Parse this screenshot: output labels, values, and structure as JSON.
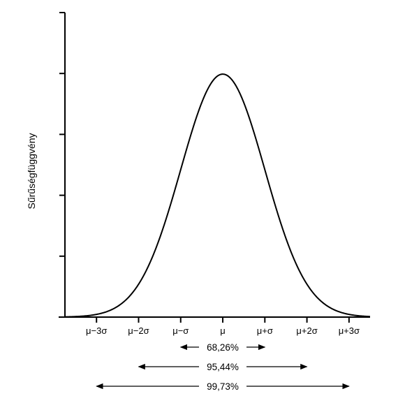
{
  "chart_data": {
    "type": "line",
    "title": "",
    "xlabel": "",
    "ylabel": "Sűrűségfüggvény",
    "xlim": [
      -3.75,
      3.5
    ],
    "ylim": [
      0,
      0.5
    ],
    "grid": false,
    "y_tick_count": 6,
    "distribution": {
      "type": "normal",
      "mean": 0,
      "sd": 1
    },
    "x_ticks": [
      {
        "value": -3,
        "label": "μ−3σ"
      },
      {
        "value": -2,
        "label": "μ−2σ"
      },
      {
        "value": -1,
        "label": "μ−σ"
      },
      {
        "value": 0,
        "label": "μ"
      },
      {
        "value": 1,
        "label": "μ+σ"
      },
      {
        "value": 2,
        "label": "μ+2σ"
      },
      {
        "value": 3,
        "label": "μ+3σ"
      }
    ],
    "annotations": [
      {
        "from": -1,
        "to": 1,
        "label": "68,26%"
      },
      {
        "from": -2,
        "to": 2,
        "label": "95,44%"
      },
      {
        "from": -3,
        "to": 3,
        "label": "99,73%"
      }
    ]
  }
}
